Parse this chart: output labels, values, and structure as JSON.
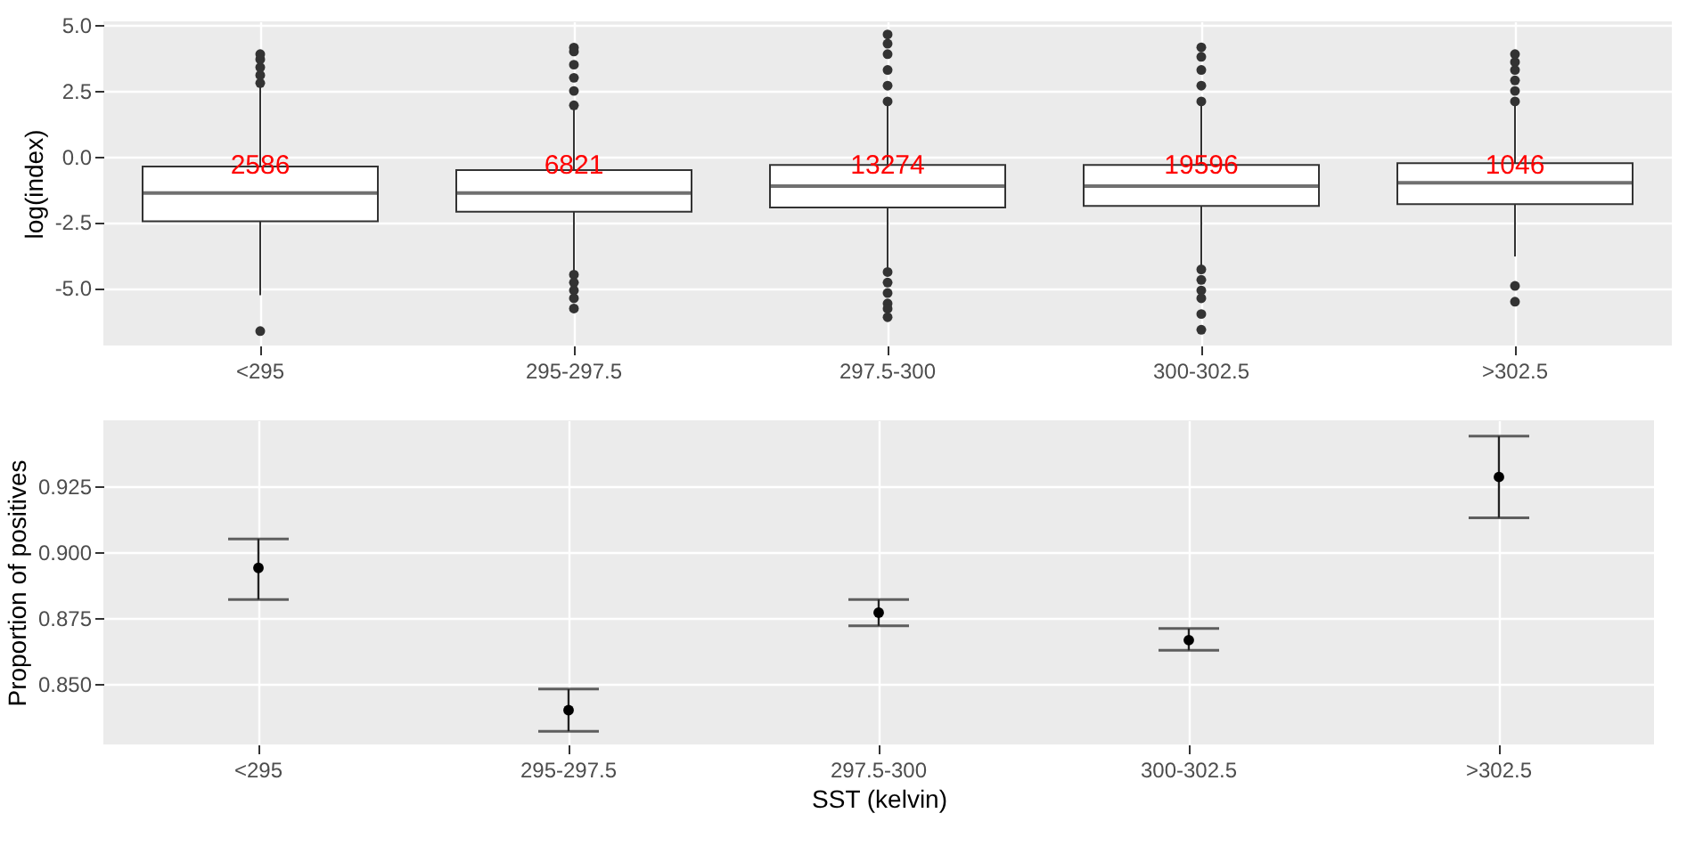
{
  "chart_data": [
    {
      "type": "box",
      "ylabel": "log(index)",
      "categories": [
        "<295",
        "295-297.5",
        "297.5-300",
        "300-302.5",
        ">302.5"
      ],
      "boxes": [
        {
          "low": -5.28,
          "q1": -2.47,
          "median": -1.39,
          "q3": -0.38,
          "high": 2.7,
          "outliers": [
            2.8,
            3.1,
            3.4,
            3.7,
            3.9,
            -6.65
          ]
        },
        {
          "low": -4.4,
          "q1": -2.1,
          "median": -1.39,
          "q3": -0.52,
          "high": 1.86,
          "outliers": [
            1.95,
            2.5,
            3.0,
            3.5,
            4.0,
            4.15,
            -4.5,
            -4.8,
            -5.1,
            -5.4,
            -5.79
          ]
        },
        {
          "low": -4.3,
          "q1": -1.94,
          "median": -1.13,
          "q3": -0.32,
          "high": 2.0,
          "outliers": [
            2.1,
            2.7,
            3.3,
            3.9,
            4.3,
            4.65,
            -4.4,
            -4.8,
            -5.2,
            -5.6,
            -5.8,
            -6.12
          ]
        },
        {
          "low": -4.23,
          "q1": -1.88,
          "median": -1.13,
          "q3": -0.32,
          "high": 2.0,
          "outliers": [
            2.1,
            2.7,
            3.3,
            3.8,
            4.16,
            -4.3,
            -4.7,
            -5.1,
            -5.4,
            -6.0,
            -6.6
          ]
        },
        {
          "low": -3.81,
          "q1": -1.81,
          "median": -1.0,
          "q3": -0.25,
          "high": 2.0,
          "outliers": [
            2.1,
            2.5,
            2.9,
            3.3,
            3.6,
            3.9,
            -4.93,
            -5.53
          ]
        }
      ],
      "annotations": [
        {
          "text": "2586",
          "x": "<295",
          "y": -0.3
        },
        {
          "text": "6821",
          "x": "295-297.5",
          "y": -0.3
        },
        {
          "text": "13274",
          "x": "297.5-300",
          "y": -0.3
        },
        {
          "text": "19596",
          "x": "300-302.5",
          "y": -0.3
        },
        {
          "text": "1046",
          "x": ">302.5",
          "y": -0.3
        }
      ],
      "ylim": [
        -7.2,
        5.15
      ],
      "yticks": [
        {
          "value": -5,
          "label": "-5.0"
        },
        {
          "value": -2.5,
          "label": "-2.5"
        },
        {
          "value": 0,
          "label": "0.0"
        },
        {
          "value": 2.5,
          "label": "2.5"
        },
        {
          "value": 5,
          "label": "5.0"
        }
      ],
      "grid": true
    },
    {
      "type": "scatter",
      "xlabel": "SST (kelvin)",
      "ylabel": "Proportion of positives",
      "categories": [
        "<295",
        "295-297.5",
        "297.5-300",
        "300-302.5",
        ">302.5"
      ],
      "values": [
        0.894,
        0.84,
        0.877,
        0.8666,
        0.9285
      ],
      "errors": [
        [
          0.882,
          0.905
        ],
        [
          0.832,
          0.848
        ],
        [
          0.872,
          0.882
        ],
        [
          0.8627,
          0.871
        ],
        [
          0.913,
          0.944
        ]
      ],
      "marker": "circle",
      "ylim": [
        0.827,
        0.95
      ],
      "yticks": [
        {
          "value": 0.85,
          "label": "0.850"
        },
        {
          "value": 0.875,
          "label": "0.875"
        },
        {
          "value": 0.9,
          "label": "0.900"
        },
        {
          "value": 0.925,
          "label": "0.925"
        }
      ],
      "grid": true
    }
  ]
}
